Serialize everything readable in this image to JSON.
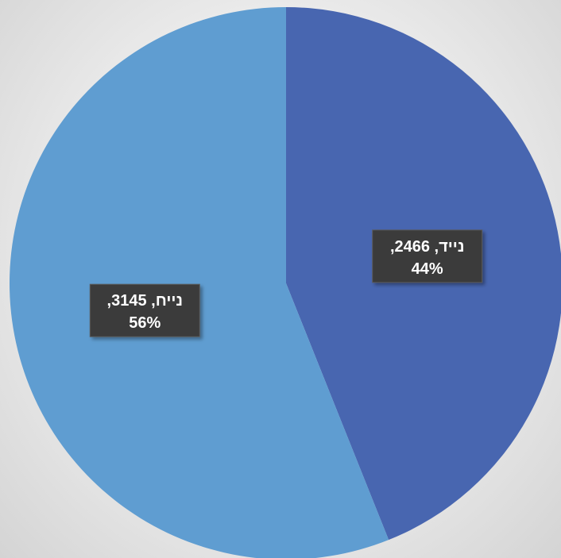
{
  "chart_data": {
    "type": "pie",
    "categories": [
      "נייד",
      "נייח"
    ],
    "values": [
      2466,
      3145
    ],
    "percents": [
      "44%",
      "56%"
    ],
    "data_labels": [
      {
        "line1": "נייד, 2466,",
        "line2": "44%"
      },
      {
        "line1": "נייח, 3145,",
        "line2": "56%"
      }
    ],
    "colors": [
      "#4866b0",
      "#5f9dd1"
    ],
    "title": "",
    "legend": "none",
    "start_angle_deg": 0,
    "direction": "clockwise"
  }
}
